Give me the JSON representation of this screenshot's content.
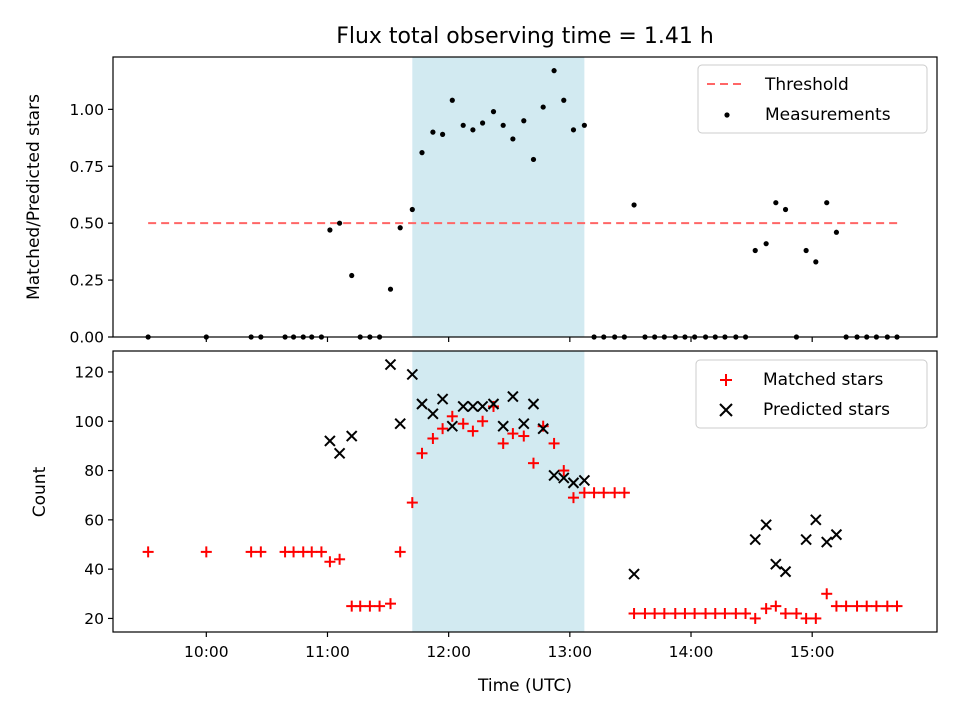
{
  "chart_data": [
    {
      "type": "scatter",
      "title": "Flux total observing time = 1.41 h",
      "xlabel": "",
      "ylabel": "Matched/Predicted stars",
      "xlim": [
        9.23,
        16.03
      ],
      "ylim": [
        0.0,
        1.23
      ],
      "yticks": [
        0.0,
        0.25,
        0.5,
        0.75,
        1.0
      ],
      "ytick_labels": [
        "0.00",
        "0.25",
        "0.50",
        "0.75",
        "1.00"
      ],
      "shaded_span": {
        "x": [
          11.7,
          13.12
        ],
        "color": "#add8e6"
      },
      "threshold": {
        "name": "Threshold",
        "y": 0.5,
        "x": [
          9.52,
          15.72
        ],
        "color": "#ff6666"
      },
      "series": [
        {
          "name": "Measurements",
          "marker": "dot",
          "color": "#000000",
          "points": [
            [
              9.52,
              0
            ],
            [
              10.0,
              0
            ],
            [
              10.37,
              0
            ],
            [
              10.45,
              0
            ],
            [
              10.65,
              0
            ],
            [
              10.72,
              0
            ],
            [
              10.8,
              0
            ],
            [
              10.87,
              0
            ],
            [
              10.95,
              0
            ],
            [
              11.02,
              0.47
            ],
            [
              11.1,
              0.5
            ],
            [
              11.2,
              0.27
            ],
            [
              11.27,
              0
            ],
            [
              11.35,
              0
            ],
            [
              11.43,
              0
            ],
            [
              11.52,
              0.21
            ],
            [
              11.6,
              0.48
            ],
            [
              11.7,
              0.56
            ],
            [
              11.78,
              0.81
            ],
            [
              11.87,
              0.9
            ],
            [
              11.95,
              0.89
            ],
            [
              12.03,
              1.04
            ],
            [
              12.12,
              0.93
            ],
            [
              12.2,
              0.91
            ],
            [
              12.28,
              0.94
            ],
            [
              12.37,
              0.99
            ],
            [
              12.45,
              0.93
            ],
            [
              12.53,
              0.87
            ],
            [
              12.62,
              0.95
            ],
            [
              12.7,
              0.78
            ],
            [
              12.78,
              1.01
            ],
            [
              12.87,
              1.17
            ],
            [
              12.95,
              1.04
            ],
            [
              13.03,
              0.91
            ],
            [
              13.12,
              0.93
            ],
            [
              13.2,
              0
            ],
            [
              13.28,
              0
            ],
            [
              13.37,
              0
            ],
            [
              13.45,
              0
            ],
            [
              13.53,
              0.58
            ],
            [
              13.62,
              0
            ],
            [
              13.7,
              0
            ],
            [
              13.78,
              0
            ],
            [
              13.87,
              0
            ],
            [
              13.95,
              0
            ],
            [
              14.03,
              0
            ],
            [
              14.12,
              0
            ],
            [
              14.2,
              0
            ],
            [
              14.28,
              0
            ],
            [
              14.37,
              0
            ],
            [
              14.45,
              0
            ],
            [
              14.53,
              0.38
            ],
            [
              14.62,
              0.41
            ],
            [
              14.7,
              0.59
            ],
            [
              14.78,
              0.56
            ],
            [
              14.87,
              0
            ],
            [
              14.95,
              0.38
            ],
            [
              15.03,
              0.33
            ],
            [
              15.12,
              0.59
            ],
            [
              15.2,
              0.46
            ],
            [
              15.28,
              0
            ],
            [
              15.37,
              0
            ],
            [
              15.45,
              0
            ],
            [
              15.53,
              0
            ],
            [
              15.62,
              0
            ],
            [
              15.7,
              0
            ]
          ]
        }
      ],
      "legend_position": "upper right"
    },
    {
      "type": "scatter",
      "title": "",
      "xlabel": "Time (UTC)",
      "ylabel": "Count",
      "xlim": [
        9.23,
        16.03
      ],
      "ylim": [
        14.5,
        128.5
      ],
      "xticks": [
        10,
        11,
        12,
        13,
        14,
        15
      ],
      "xtick_labels": [
        "10:00",
        "11:00",
        "12:00",
        "13:00",
        "14:00",
        "15:00"
      ],
      "yticks": [
        20,
        40,
        60,
        80,
        100,
        120
      ],
      "ytick_labels": [
        "20",
        "40",
        "60",
        "80",
        "100",
        "120"
      ],
      "shaded_span": {
        "x": [
          11.7,
          13.12
        ],
        "color": "#add8e6"
      },
      "series": [
        {
          "name": "Matched stars",
          "marker": "plus",
          "color": "#ff0000",
          "points": [
            [
              9.52,
              47
            ],
            [
              10.0,
              47
            ],
            [
              10.37,
              47
            ],
            [
              10.45,
              47
            ],
            [
              10.65,
              47
            ],
            [
              10.72,
              47
            ],
            [
              10.8,
              47
            ],
            [
              10.87,
              47
            ],
            [
              10.95,
              47
            ],
            [
              11.02,
              43
            ],
            [
              11.1,
              44
            ],
            [
              11.2,
              25
            ],
            [
              11.27,
              25
            ],
            [
              11.35,
              25
            ],
            [
              11.43,
              25
            ],
            [
              11.52,
              26
            ],
            [
              11.6,
              47
            ],
            [
              11.7,
              67
            ],
            [
              11.78,
              87
            ],
            [
              11.87,
              93
            ],
            [
              11.95,
              97
            ],
            [
              12.03,
              102
            ],
            [
              12.12,
              99
            ],
            [
              12.2,
              96
            ],
            [
              12.28,
              100
            ],
            [
              12.37,
              106
            ],
            [
              12.45,
              91
            ],
            [
              12.53,
              95
            ],
            [
              12.62,
              94
            ],
            [
              12.7,
              83
            ],
            [
              12.78,
              98
            ],
            [
              12.87,
              91
            ],
            [
              12.95,
              80
            ],
            [
              13.03,
              69
            ],
            [
              13.12,
              71
            ],
            [
              13.2,
              71
            ],
            [
              13.28,
              71
            ],
            [
              13.37,
              71
            ],
            [
              13.45,
              71
            ],
            [
              13.53,
              22
            ],
            [
              13.62,
              22
            ],
            [
              13.7,
              22
            ],
            [
              13.78,
              22
            ],
            [
              13.87,
              22
            ],
            [
              13.95,
              22
            ],
            [
              14.03,
              22
            ],
            [
              14.12,
              22
            ],
            [
              14.2,
              22
            ],
            [
              14.28,
              22
            ],
            [
              14.37,
              22
            ],
            [
              14.45,
              22
            ],
            [
              14.53,
              20
            ],
            [
              14.62,
              24
            ],
            [
              14.7,
              25
            ],
            [
              14.78,
              22
            ],
            [
              14.87,
              22
            ],
            [
              14.95,
              20
            ],
            [
              15.03,
              20
            ],
            [
              15.12,
              30
            ],
            [
              15.2,
              25
            ],
            [
              15.28,
              25
            ],
            [
              15.37,
              25
            ],
            [
              15.45,
              25
            ],
            [
              15.53,
              25
            ],
            [
              15.62,
              25
            ],
            [
              15.7,
              25
            ]
          ]
        },
        {
          "name": "Predicted stars",
          "marker": "x",
          "color": "#000000",
          "points": [
            [
              11.02,
              92
            ],
            [
              11.1,
              87
            ],
            [
              11.2,
              94
            ],
            [
              11.52,
              123
            ],
            [
              11.6,
              99
            ],
            [
              11.7,
              119
            ],
            [
              11.78,
              107
            ],
            [
              11.87,
              103
            ],
            [
              11.95,
              109
            ],
            [
              12.03,
              98
            ],
            [
              12.12,
              106
            ],
            [
              12.2,
              106
            ],
            [
              12.28,
              106
            ],
            [
              12.37,
              107
            ],
            [
              12.45,
              98
            ],
            [
              12.53,
              110
            ],
            [
              12.62,
              99
            ],
            [
              12.7,
              107
            ],
            [
              12.78,
              97
            ],
            [
              12.87,
              78
            ],
            [
              12.95,
              77
            ],
            [
              13.03,
              75
            ],
            [
              13.12,
              76
            ],
            [
              13.53,
              38
            ],
            [
              14.53,
              52
            ],
            [
              14.62,
              58
            ],
            [
              14.7,
              42
            ],
            [
              14.78,
              39
            ],
            [
              14.95,
              52
            ],
            [
              15.03,
              60
            ],
            [
              15.12,
              51
            ],
            [
              15.2,
              54
            ]
          ]
        }
      ],
      "legend_position": "upper right"
    }
  ]
}
